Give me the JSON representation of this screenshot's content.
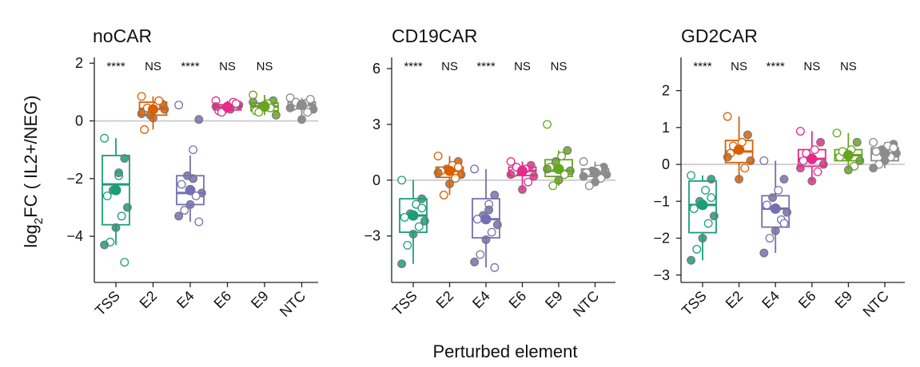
{
  "figure": {
    "ylabel_prefix": "log",
    "ylabel_sub": "2",
    "ylabel_suffix": "FC ( IL2+/NEG)",
    "xlabel": "Perturbed element"
  },
  "colors": {
    "TSS": "#1b9e77",
    "E2": "#d95f02",
    "E4": "#7570b3",
    "E6": "#e7298a",
    "E9": "#66a61e",
    "NTC": "#8c8c8c",
    "zero_line": "#c8c8c8",
    "axis": "#222222"
  },
  "chart_data": [
    {
      "type": "box",
      "title": "noCAR",
      "categories": [
        "TSS",
        "E2",
        "E4",
        "E6",
        "E9",
        "NTC"
      ],
      "significance": [
        "****",
        "NS",
        "****",
        "NS",
        "NS",
        ""
      ],
      "ylim": [
        -5.6,
        2.2
      ],
      "yticks": [
        2,
        0,
        -2,
        -4
      ],
      "boxes": [
        {
          "q1": -3.6,
          "median": -2.2,
          "q3": -1.2,
          "whisker_low": -4.3,
          "whisker_high": -0.6,
          "mean": -2.4
        },
        {
          "q1": 0.2,
          "median": 0.42,
          "q3": 0.65,
          "whisker_low": -0.3,
          "whisker_high": 0.85,
          "mean": 0.4
        },
        {
          "q1": -2.9,
          "median": -2.5,
          "q3": -1.9,
          "whisker_low": -3.5,
          "whisker_high": -1.2,
          "mean": -2.4
        },
        {
          "q1": 0.38,
          "median": 0.48,
          "q3": 0.56,
          "whisker_low": 0.3,
          "whisker_high": 0.7,
          "mean": 0.48
        },
        {
          "q1": 0.35,
          "median": 0.5,
          "q3": 0.62,
          "whisker_low": 0.2,
          "whisker_high": 0.9,
          "mean": 0.5
        },
        {
          "q1": 0.42,
          "median": 0.55,
          "q3": 0.65,
          "whisker_low": 0.05,
          "whisker_high": 0.8,
          "mean": 0.55
        }
      ],
      "points": [
        [
          -0.6,
          -1.3,
          -1.9,
          -2.4,
          -2.6,
          -3.0,
          -3.3,
          -3.7,
          -4.2,
          -4.3,
          -4.9,
          -1.8
        ],
        [
          0.85,
          0.6,
          0.5,
          0.2,
          -0.3,
          0.4,
          0.7,
          0.1,
          0.45,
          0.25
        ],
        [
          0.55,
          0.05,
          -1.0,
          -1.9,
          -2.2,
          -2.5,
          -2.6,
          -2.9,
          -3.1,
          -3.3,
          -3.5,
          -2.0
        ],
        [
          0.7,
          0.6,
          0.5,
          0.4,
          0.35,
          0.55,
          0.65,
          0.45,
          0.3,
          0.5,
          0.6,
          0.4
        ],
        [
          0.9,
          0.7,
          0.6,
          0.5,
          0.35,
          0.2,
          0.45,
          0.55,
          0.3,
          0.65
        ],
        [
          0.8,
          0.7,
          0.6,
          0.55,
          0.5,
          0.4,
          0.3,
          0.05,
          0.65,
          0.45,
          0.75
        ]
      ]
    },
    {
      "type": "box",
      "title": "CD19CAR",
      "categories": [
        "TSS",
        "E2",
        "E4",
        "E6",
        "E9",
        "NTC"
      ],
      "significance": [
        "****",
        "NS",
        "****",
        "NS",
        "NS",
        ""
      ],
      "ylim": [
        -5.5,
        6.6
      ],
      "yticks": [
        6,
        3,
        0,
        -3
      ],
      "boxes": [
        {
          "q1": -2.8,
          "median": -1.9,
          "q3": -1.0,
          "whisker_low": -4.5,
          "whisker_high": 0.0,
          "mean": -1.9
        },
        {
          "q1": 0.15,
          "median": 0.5,
          "q3": 0.7,
          "whisker_low": -0.8,
          "whisker_high": 1.3,
          "mean": 0.5
        },
        {
          "q1": -3.1,
          "median": -2.1,
          "q3": -1.0,
          "whisker_low": -4.7,
          "whisker_high": 0.6,
          "mean": -2.1
        },
        {
          "q1": 0.25,
          "median": 0.5,
          "q3": 0.7,
          "whisker_low": -0.5,
          "whisker_high": 1.0,
          "mean": 0.5
        },
        {
          "q1": 0.2,
          "median": 0.5,
          "q3": 1.1,
          "whisker_low": -0.3,
          "whisker_high": 1.6,
          "mean": 0.6
        },
        {
          "q1": 0.2,
          "median": 0.4,
          "q3": 0.6,
          "whisker_low": -0.3,
          "whisker_high": 1.0,
          "mean": 0.4
        }
      ],
      "points": [
        [
          0.0,
          -1.0,
          -1.3,
          -1.8,
          -2.0,
          -2.2,
          -2.5,
          -2.9,
          -3.5,
          -4.5,
          -1.5
        ],
        [
          1.3,
          1.0,
          0.8,
          0.6,
          0.5,
          0.3,
          0.1,
          -0.2,
          -0.8,
          0.4,
          0.7
        ],
        [
          0.6,
          -0.8,
          -1.3,
          -1.9,
          -2.1,
          -2.4,
          -2.8,
          -3.2,
          -4.0,
          -4.4,
          -4.7,
          -1.6
        ],
        [
          1.0,
          0.8,
          0.6,
          0.5,
          0.4,
          0.2,
          -0.1,
          -0.5,
          0.7,
          0.3
        ],
        [
          3.0,
          1.6,
          1.3,
          1.0,
          0.7,
          0.5,
          0.3,
          0.0,
          -0.3,
          0.6
        ],
        [
          1.0,
          0.7,
          0.6,
          0.5,
          0.4,
          0.3,
          0.1,
          -0.1,
          -0.3,
          0.2
        ]
      ]
    },
    {
      "type": "box",
      "title": "GD2CAR",
      "categories": [
        "TSS",
        "E2",
        "E4",
        "E6",
        "E9",
        "NTC"
      ],
      "significance": [
        "****",
        "NS",
        "****",
        "NS",
        "NS",
        ""
      ],
      "ylim": [
        -3.2,
        2.9
      ],
      "yticks": [
        2,
        1,
        0,
        -1,
        -2,
        -3
      ],
      "boxes": [
        {
          "q1": -1.85,
          "median": -1.1,
          "q3": -0.45,
          "whisker_low": -2.6,
          "whisker_high": -0.3,
          "mean": -1.1
        },
        {
          "q1": 0.05,
          "median": 0.35,
          "q3": 0.65,
          "whisker_low": -0.45,
          "whisker_high": 1.3,
          "mean": 0.4
        },
        {
          "q1": -1.7,
          "median": -1.2,
          "q3": -0.85,
          "whisker_low": -2.4,
          "whisker_high": 0.1,
          "mean": -1.2
        },
        {
          "q1": -0.05,
          "median": 0.15,
          "q3": 0.4,
          "whisker_low": -0.45,
          "whisker_high": 0.9,
          "mean": 0.15
        },
        {
          "q1": 0.1,
          "median": 0.25,
          "q3": 0.4,
          "whisker_low": -0.15,
          "whisker_high": 0.85,
          "mean": 0.25
        },
        {
          "q1": 0.1,
          "median": 0.3,
          "q3": 0.45,
          "whisker_low": -0.1,
          "whisker_high": 0.6,
          "mean": 0.3
        }
      ],
      "points": [
        [
          -0.3,
          -0.4,
          -0.7,
          -1.0,
          -1.2,
          -1.4,
          -1.6,
          -2.0,
          -2.3,
          -2.6,
          -0.9
        ],
        [
          1.3,
          0.8,
          0.6,
          0.4,
          0.3,
          0.1,
          -0.1,
          -0.4,
          0.5,
          0.2
        ],
        [
          0.1,
          -0.4,
          -0.7,
          -0.9,
          -1.1,
          -1.3,
          -1.5,
          -1.8,
          -2.0,
          -2.4,
          -1.6
        ],
        [
          0.9,
          0.6,
          0.4,
          0.2,
          0.1,
          0.0,
          -0.2,
          -0.45,
          0.3,
          -0.1
        ],
        [
          0.85,
          0.6,
          0.4,
          0.3,
          0.2,
          0.1,
          -0.05,
          -0.15,
          0.35
        ],
        [
          0.6,
          0.55,
          0.5,
          0.4,
          0.35,
          0.3,
          0.2,
          0.1,
          0.0,
          -0.1,
          0.45
        ]
      ]
    }
  ]
}
